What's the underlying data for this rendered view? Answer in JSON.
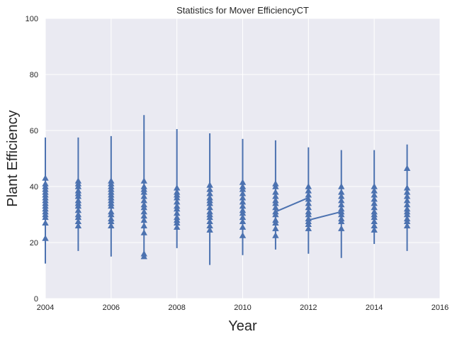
{
  "chart_data": {
    "type": "line",
    "title": "Statistics for Mover EfficiencyCT",
    "xlabel": "Year",
    "ylabel": "Plant Efficiency",
    "xlim": [
      2004,
      2016
    ],
    "ylim": [
      0,
      100
    ],
    "x_ticks": [
      "2004",
      "2006",
      "2008",
      "2010",
      "2012",
      "2014",
      "2016"
    ],
    "y_ticks": [
      "0",
      "20",
      "40",
      "60",
      "80",
      "100"
    ],
    "grid": true,
    "background": "#eaeaf2",
    "series_color": "#4c72b0",
    "yearly_ranges": [
      {
        "year": 2004,
        "min": 12.5,
        "max": 57.5
      },
      {
        "year": 2005,
        "min": 17,
        "max": 57.5
      },
      {
        "year": 2006,
        "min": 15,
        "max": 58
      },
      {
        "year": 2007,
        "min": 15,
        "max": 65.5
      },
      {
        "year": 2008,
        "min": 18,
        "max": 60.5
      },
      {
        "year": 2009,
        "min": 12,
        "max": 59
      },
      {
        "year": 2010,
        "min": 15.5,
        "max": 57
      },
      {
        "year": 2011,
        "min": 17.5,
        "max": 56.5
      },
      {
        "year": 2012,
        "min": 16,
        "max": 54
      },
      {
        "year": 2013,
        "min": 14.5,
        "max": 53
      },
      {
        "year": 2014,
        "min": 19.5,
        "max": 53
      },
      {
        "year": 2015,
        "min": 17,
        "max": 55
      }
    ],
    "markers": [
      {
        "year": 2004,
        "values": [
          21.5,
          27,
          29,
          30,
          31,
          32,
          33,
          34,
          35,
          36,
          37,
          38,
          39,
          40,
          41,
          43
        ]
      },
      {
        "year": 2005,
        "values": [
          26,
          27.5,
          29,
          30,
          31.5,
          33,
          34,
          35,
          36.5,
          37.5,
          38.5,
          40,
          41,
          42
        ]
      },
      {
        "year": 2006,
        "values": [
          26,
          27.5,
          28.5,
          30,
          31,
          33,
          34,
          35,
          36,
          37,
          38,
          39,
          40,
          41,
          42
        ]
      },
      {
        "year": 2007,
        "values": [
          15,
          16,
          23.5,
          26,
          28,
          29.5,
          31,
          32.5,
          33.5,
          35,
          36.5,
          38,
          39,
          40,
          42
        ]
      },
      {
        "year": 2008,
        "values": [
          25.5,
          27,
          28,
          29,
          30.5,
          32,
          33,
          34.5,
          36,
          37,
          38,
          39.5
        ]
      },
      {
        "year": 2009,
        "values": [
          24.5,
          26,
          27.5,
          29,
          30,
          31,
          32.5,
          34,
          35,
          36,
          37.5,
          39,
          40.5
        ]
      },
      {
        "year": 2010,
        "values": [
          22.5,
          25.5,
          27.5,
          29,
          30.5,
          31.5,
          33,
          34.5,
          36,
          37.5,
          39,
          40,
          41.5
        ]
      },
      {
        "year": 2011,
        "values": [
          22.5,
          25,
          27,
          28,
          30,
          31,
          32.5,
          34,
          35,
          36.5,
          38,
          40,
          41
        ]
      },
      {
        "year": 2012,
        "values": [
          25,
          26.5,
          27.5,
          28.5,
          30,
          31,
          32.5,
          34,
          35.5,
          37,
          38.5,
          40
        ]
      },
      {
        "year": 2013,
        "values": [
          25,
          27.5,
          28.5,
          30,
          31,
          32,
          33.5,
          35,
          36.5,
          38,
          40
        ]
      },
      {
        "year": 2014,
        "values": [
          24.5,
          26,
          27.5,
          29,
          30,
          31,
          32.5,
          34,
          35.5,
          37,
          38.5,
          40
        ]
      },
      {
        "year": 2015,
        "values": [
          26,
          27.5,
          28.5,
          30,
          31,
          32,
          33.5,
          35,
          36.5,
          38,
          39.5,
          46.5
        ]
      }
    ],
    "connectors": [
      {
        "points": [
          [
            2011,
            31
          ],
          [
            2012,
            36
          ]
        ]
      },
      {
        "points": [
          [
            2012,
            28
          ],
          [
            2013,
            31
          ]
        ]
      }
    ]
  }
}
